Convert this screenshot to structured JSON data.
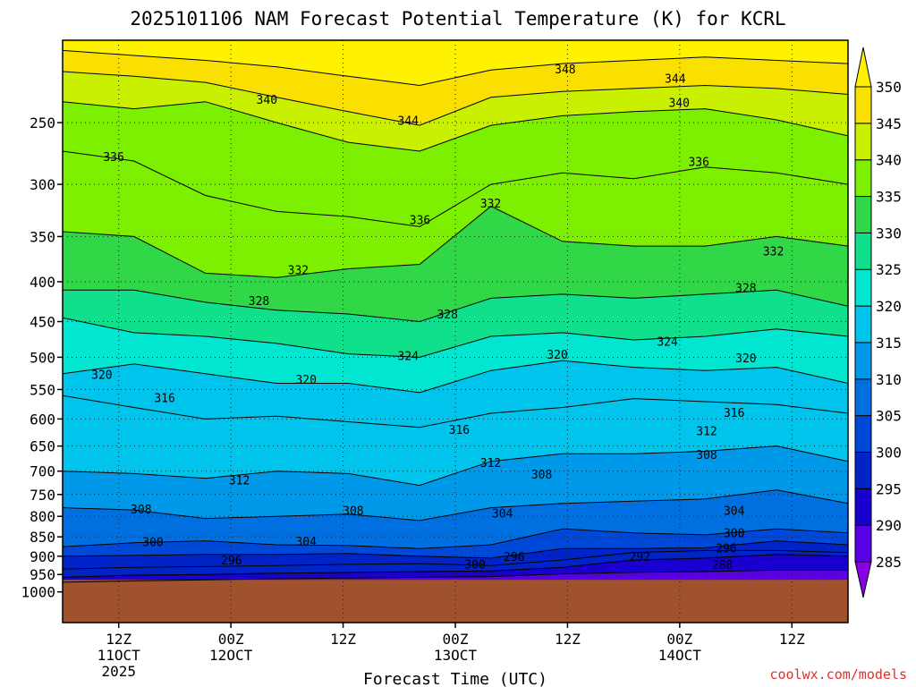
{
  "chart_data": {
    "type": "heatmap",
    "title": "2025101106 NAM Forecast Potential Temperature (K) for KCRL",
    "xlabel": "Forecast Time (UTC)",
    "ylabel": "",
    "y_scale": "log",
    "y_inverted": true,
    "y_ticks": [
      250,
      300,
      350,
      400,
      450,
      500,
      550,
      600,
      650,
      700,
      750,
      800,
      850,
      900,
      950,
      1000
    ],
    "y_tick_labels": [
      "250",
      "300",
      "350",
      "400",
      "450",
      "500",
      "550",
      "600",
      "650",
      "700",
      "750",
      "800",
      "850",
      "900",
      "950",
      "1000"
    ],
    "x_range": [
      "2025-10-11 06Z",
      "2025-10-14 18Z"
    ],
    "x_ticks": [
      {
        "time": "2025-10-11 12Z",
        "label": "12Z",
        "sub1": "11OCT",
        "sub2": "2025"
      },
      {
        "time": "2025-10-12 00Z",
        "label": "00Z",
        "sub1": "12OCT",
        "sub2": ""
      },
      {
        "time": "2025-10-12 12Z",
        "label": "12Z",
        "sub1": "",
        "sub2": ""
      },
      {
        "time": "2025-10-13 00Z",
        "label": "00Z",
        "sub1": "13OCT",
        "sub2": ""
      },
      {
        "time": "2025-10-13 12Z",
        "label": "12Z",
        "sub1": "",
        "sub2": ""
      },
      {
        "time": "2025-10-14 00Z",
        "label": "00Z",
        "sub1": "14OCT",
        "sub2": ""
      },
      {
        "time": "2025-10-14 12Z",
        "label": "12Z",
        "sub1": "",
        "sub2": ""
      }
    ],
    "grid": true,
    "colorbar": {
      "levels": [
        285,
        290,
        295,
        300,
        305,
        310,
        315,
        320,
        325,
        330,
        335,
        340,
        345,
        350
      ],
      "colors": [
        "#8a00e6",
        "#5a00e6",
        "#1a00d0",
        "#0024c8",
        "#0048d8",
        "#0070e0",
        "#0098e8",
        "#00c4ec",
        "#00e6d0",
        "#10e08c",
        "#30d848",
        "#7cf000",
        "#c8f000",
        "#fae000",
        "#fff200"
      ]
    },
    "contour_interval": 4,
    "contours": [
      {
        "theta": 288,
        "p": [
          972,
          968,
          965,
          962,
          960,
          958,
          956,
          948,
          944,
          942,
          938,
          938
        ]
      },
      {
        "theta": 292,
        "p": [
          958,
          952,
          950,
          946,
          944,
          942,
          940,
          930,
          910,
          905,
          895,
          900
        ]
      },
      {
        "theta": 296,
        "p": [
          935,
          930,
          928,
          925,
          922,
          920,
          925,
          910,
          890,
          885,
          885,
          890
        ]
      },
      {
        "theta": 300,
        "p": [
          900,
          898,
          895,
          895,
          893,
          900,
          905,
          880,
          880,
          878,
          860,
          870
        ]
      },
      {
        "theta": 304,
        "p": [
          875,
          865,
          860,
          870,
          872,
          880,
          870,
          830,
          840,
          845,
          830,
          840
        ]
      },
      {
        "theta": 308,
        "p": [
          780,
          785,
          805,
          800,
          795,
          810,
          780,
          770,
          765,
          760,
          740,
          770
        ]
      },
      {
        "theta": 312,
        "p": [
          700,
          705,
          715,
          700,
          705,
          730,
          680,
          665,
          665,
          660,
          650,
          680
        ]
      },
      {
        "theta": 316,
        "p": [
          560,
          580,
          600,
          595,
          605,
          615,
          590,
          580,
          565,
          570,
          575,
          590
        ]
      },
      {
        "theta": 320,
        "p": [
          525,
          510,
          525,
          540,
          540,
          555,
          520,
          505,
          515,
          520,
          515,
          540
        ]
      },
      {
        "theta": 324,
        "p": [
          445,
          465,
          470,
          480,
          495,
          500,
          470,
          465,
          475,
          470,
          460,
          470
        ]
      },
      {
        "theta": 328,
        "p": [
          410,
          410,
          425,
          435,
          440,
          450,
          420,
          415,
          420,
          415,
          410,
          430
        ]
      },
      {
        "theta": 332,
        "p": [
          345,
          350,
          390,
          395,
          385,
          380,
          320,
          355,
          360,
          360,
          350,
          360
        ]
      },
      {
        "theta": 336,
        "p": [
          272,
          280,
          310,
          325,
          330,
          340,
          300,
          290,
          295,
          285,
          290,
          300
        ]
      },
      {
        "theta": 340,
        "p": [
          235,
          240,
          235,
          250,
          265,
          272,
          252,
          245,
          242,
          240,
          248,
          260
        ]
      },
      {
        "theta": 344,
        "p": [
          215,
          218,
          222,
          232,
          242,
          252,
          232,
          228,
          226,
          224,
          226,
          230
        ]
      },
      {
        "theta": 348,
        "p": [
          202,
          205,
          208,
          212,
          218,
          224,
          214,
          210,
          208,
          206,
          208,
          210
        ]
      }
    ],
    "contour_labels": [
      {
        "text": "336",
        "t": 0.065,
        "p": 277
      },
      {
        "text": "340",
        "t": 0.26,
        "p": 234
      },
      {
        "text": "348",
        "t": 0.64,
        "p": 214
      },
      {
        "text": "344",
        "t": 0.78,
        "p": 220
      },
      {
        "text": "344",
        "t": 0.44,
        "p": 249
      },
      {
        "text": "340",
        "t": 0.785,
        "p": 236
      },
      {
        "text": "336",
        "t": 0.81,
        "p": 281
      },
      {
        "text": "336",
        "t": 0.455,
        "p": 334
      },
      {
        "text": "332",
        "t": 0.545,
        "p": 318
      },
      {
        "text": "332",
        "t": 0.905,
        "p": 366
      },
      {
        "text": "332",
        "t": 0.3,
        "p": 387
      },
      {
        "text": "328",
        "t": 0.25,
        "p": 424
      },
      {
        "text": "328",
        "t": 0.87,
        "p": 408
      },
      {
        "text": "328",
        "t": 0.49,
        "p": 441
      },
      {
        "text": "324",
        "t": 0.77,
        "p": 478
      },
      {
        "text": "324",
        "t": 0.44,
        "p": 499
      },
      {
        "text": "320",
        "t": 0.05,
        "p": 527
      },
      {
        "text": "320",
        "t": 0.31,
        "p": 535
      },
      {
        "text": "320",
        "t": 0.63,
        "p": 497
      },
      {
        "text": "320",
        "t": 0.87,
        "p": 502
      },
      {
        "text": "316",
        "t": 0.13,
        "p": 565
      },
      {
        "text": "316",
        "t": 0.505,
        "p": 620
      },
      {
        "text": "316",
        "t": 0.855,
        "p": 590
      },
      {
        "text": "312",
        "t": 0.82,
        "p": 623
      },
      {
        "text": "308",
        "t": 0.82,
        "p": 668
      },
      {
        "text": "312",
        "t": 0.545,
        "p": 684
      },
      {
        "text": "308",
        "t": 0.61,
        "p": 708
      },
      {
        "text": "312",
        "t": 0.225,
        "p": 720
      },
      {
        "text": "308",
        "t": 0.1,
        "p": 785
      },
      {
        "text": "308",
        "t": 0.37,
        "p": 788
      },
      {
        "text": "304",
        "t": 0.56,
        "p": 794
      },
      {
        "text": "304",
        "t": 0.855,
        "p": 788
      },
      {
        "text": "300",
        "t": 0.115,
        "p": 864
      },
      {
        "text": "304",
        "t": 0.31,
        "p": 863
      },
      {
        "text": "300",
        "t": 0.855,
        "p": 842
      },
      {
        "text": "296",
        "t": 0.845,
        "p": 880
      },
      {
        "text": "296",
        "t": 0.215,
        "p": 913
      },
      {
        "text": "300",
        "t": 0.525,
        "p": 923
      },
      {
        "text": "296",
        "t": 0.575,
        "p": 903
      },
      {
        "text": "292",
        "t": 0.735,
        "p": 903
      },
      {
        "text": "288",
        "t": 0.84,
        "p": 925
      }
    ]
  },
  "credit": "coolwx.com/models"
}
